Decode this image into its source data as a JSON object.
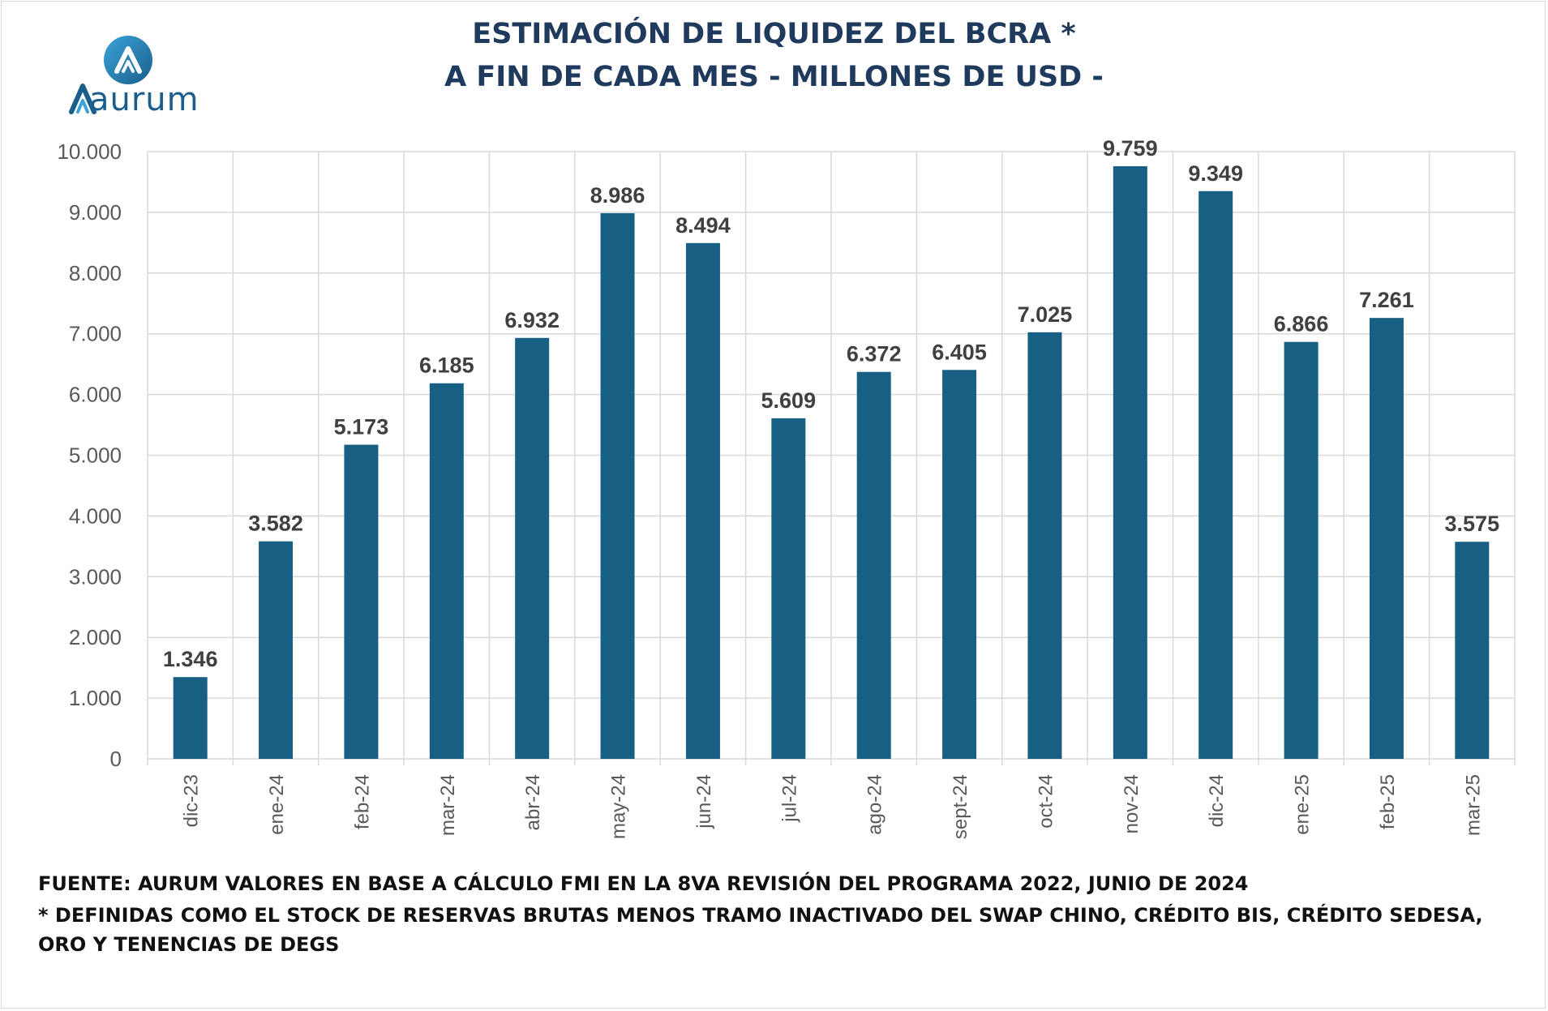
{
  "brand": {
    "name": "Aurum",
    "logo_text": "aurum",
    "logo_letter": "A",
    "primary_color": "#1b5e8c",
    "accent_color": "#3aa4d8"
  },
  "chart_data": {
    "type": "bar",
    "title_lines": [
      "ESTIMACIÓN DE LIQUIDEZ DEL BCRA *",
      "A FIN DE CADA MES - MILLONES DE USD -"
    ],
    "categories": [
      "dic-23",
      "ene-24",
      "feb-24",
      "mar-24",
      "abr-24",
      "may-24",
      "jun-24",
      "jul-24",
      "ago-24",
      "sept-24",
      "oct-24",
      "nov-24",
      "dic-24",
      "ene-25",
      "feb-25",
      "mar-25"
    ],
    "values": [
      1346,
      3582,
      5173,
      6185,
      6932,
      8986,
      8494,
      5609,
      6372,
      6405,
      7025,
      9759,
      9349,
      6866,
      7261,
      3575
    ],
    "value_labels": [
      "1.346",
      "3.582",
      "5.173",
      "6.185",
      "6.932",
      "8.986",
      "8.494",
      "5.609",
      "6.372",
      "6.405",
      "7.025",
      "9.759",
      "9.349",
      "6.866",
      "7.261",
      "3.575"
    ],
    "ylim": [
      0,
      10000
    ],
    "yticks": [
      0,
      1000,
      2000,
      3000,
      4000,
      5000,
      6000,
      7000,
      8000,
      9000,
      10000
    ],
    "ytick_labels": [
      "0",
      "1.000",
      "2.000",
      "3.000",
      "4.000",
      "5.000",
      "6.000",
      "7.000",
      "8.000",
      "9.000",
      "10.000"
    ],
    "xlabel": "",
    "ylabel": "",
    "grid": true,
    "bar_color": "#185f84",
    "grid_color": "#d9d9d9",
    "label_color": "#404040",
    "axis_text_color": "#595959"
  },
  "footnotes": {
    "source": "FUENTE: AURUM VALORES EN BASE A CÁLCULO FMI EN LA 8VA REVISIÓN DEL PROGRAMA 2022, JUNIO DE 2024",
    "definition": "* DEFINIDAS COMO EL STOCK DE RESERVAS BRUTAS MENOS TRAMO INACTIVADO DEL SWAP CHINO, CRÉDITO BIS, CRÉDITO SEDESA, ORO Y TENENCIAS DE DEGS"
  }
}
